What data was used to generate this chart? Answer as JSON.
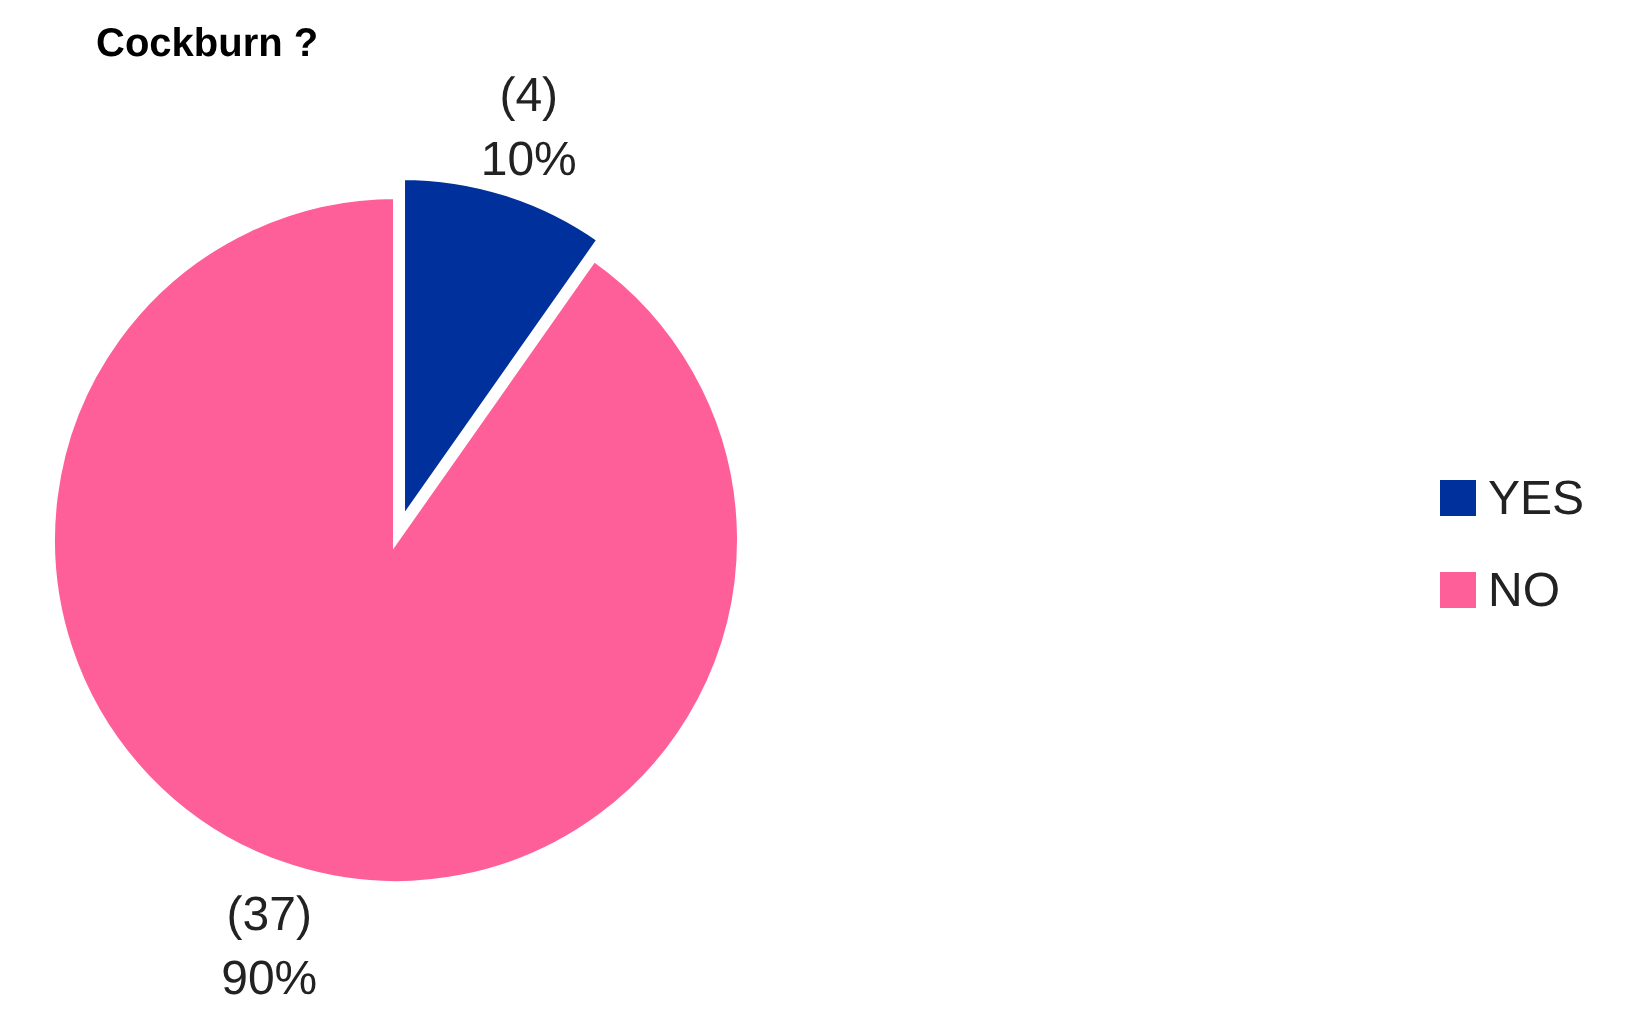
{
  "chart_data": {
    "type": "pie",
    "title": "Cockburn ?",
    "categories": [
      "YES",
      "NO"
    ],
    "values": [
      4,
      37
    ],
    "colors": [
      "#00309c",
      "#ff5f99"
    ],
    "value_labels": [
      "(4)\n10%",
      "(37)\n90%"
    ],
    "legend": "right"
  }
}
